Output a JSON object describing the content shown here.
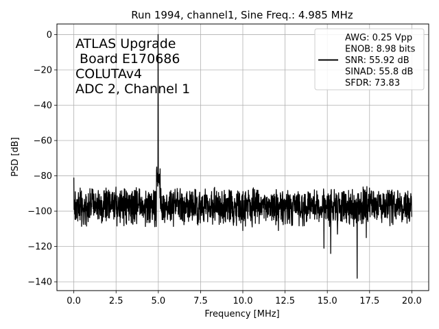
{
  "chart_data": {
    "type": "line",
    "title": "Run 1994, channel1, Sine Freq.: 4.985 MHz",
    "xlabel": "Frequency [MHz]",
    "ylabel": "PSD [dB]",
    "xlim": [
      -1.0,
      21.0
    ],
    "ylim": [
      -145,
      6
    ],
    "xticks": [
      0.0,
      2.5,
      5.0,
      7.5,
      10.0,
      12.5,
      15.0,
      17.5,
      20.0
    ],
    "xtick_labels": [
      "0.0",
      "2.5",
      "5.0",
      "7.5",
      "10.0",
      "12.5",
      "15.0",
      "17.5",
      "20.0"
    ],
    "yticks": [
      0,
      -20,
      -40,
      -60,
      -80,
      -100,
      -120,
      -140
    ],
    "ytick_labels": [
      "0",
      "−20",
      "−40",
      "−60",
      "−80",
      "−100",
      "−120",
      "−140"
    ],
    "grid": true,
    "legend_position": "top-right",
    "annotation_lines": [
      "ATLAS Upgrade",
      " Board E170686",
      "COLUTAv4",
      "ADC 2, Channel 1"
    ],
    "legend_lines": [
      "AWG: 0.25 Vpp",
      "ENOB: 8.98 bits",
      "SNR: 55.92 dB",
      "SINAD: 55.8 dB",
      "SFDR: 73.83"
    ],
    "series": [
      {
        "color": "#000000",
        "noise_floor_db": -97,
        "noise_band_db": [
          -105,
          -88
        ],
        "peaks": [
          {
            "x": 4.985,
            "y": 0
          }
        ],
        "dips": [
          {
            "x": 0.0,
            "y": -81
          },
          {
            "x": 4.9,
            "y": -75
          },
          {
            "x": 5.1,
            "y": -76
          },
          {
            "x": 10.0,
            "y": -111
          },
          {
            "x": 12.1,
            "y": -111
          },
          {
            "x": 14.8,
            "y": -121
          },
          {
            "x": 15.2,
            "y": -124
          },
          {
            "x": 15.6,
            "y": -113
          },
          {
            "x": 16.76,
            "y": -138
          },
          {
            "x": 17.3,
            "y": -115
          }
        ]
      }
    ]
  }
}
